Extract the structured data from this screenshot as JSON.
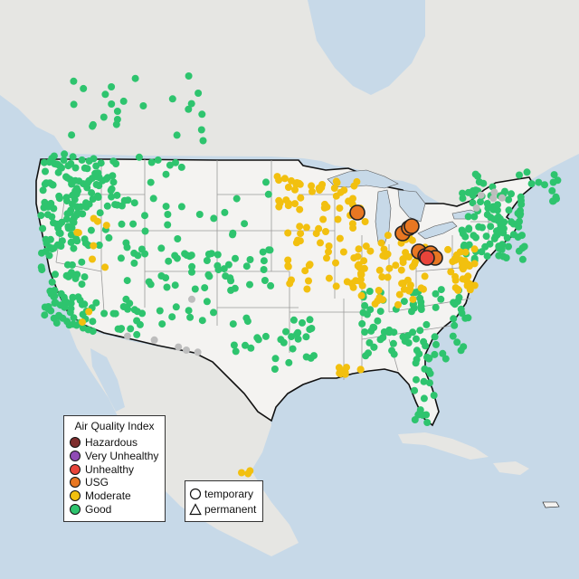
{
  "legend": {
    "title": "Air Quality Index",
    "items": [
      {
        "label": "Hazardous",
        "color": "#7e2d2d"
      },
      {
        "label": "Very Unhealthy",
        "color": "#8f4bb5"
      },
      {
        "label": "Unhealthy",
        "color": "#e8443a"
      },
      {
        "label": "USG",
        "color": "#e87722"
      },
      {
        "label": "Moderate",
        "color": "#f2c00f"
      },
      {
        "label": "Good",
        "color": "#2ec46e"
      }
    ]
  },
  "monitor_types": [
    {
      "label": "temporary",
      "shape": "circle"
    },
    {
      "label": "permanent",
      "shape": "triangle"
    }
  ],
  "colors": {
    "water": "#c7d9e8",
    "land_us": "#f4f3f1",
    "land_other": "#e6e6e3",
    "state_lines": "#9a9a9a",
    "border": "#111111",
    "no_data": "#bdbdbd"
  }
}
